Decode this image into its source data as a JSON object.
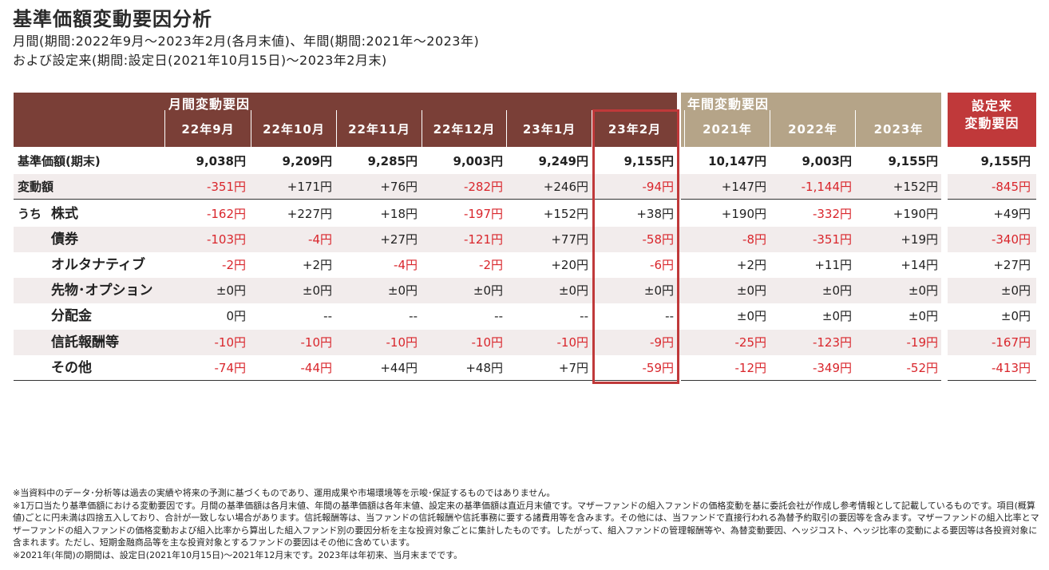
{
  "title": "基準価額変動要因分析",
  "subtitle_line1": "月間(期間:2022年9月～2023年2月(各月末値)、年間(期間:2021年～2023年)",
  "subtitle_line2": "および設定来(期間:設定日(2021年10月15日)～2023年2月末)",
  "headers": {
    "monthly_group": "月間変動要因",
    "annual_group": "年間変動要因",
    "since_line1": "設定来",
    "since_line2": "変動要因",
    "monthly_cols": [
      "22年9月",
      "22年10月",
      "22年11月",
      "22年12月",
      "23年1月",
      "23年2月"
    ],
    "annual_cols": [
      "2021年",
      "2022年",
      "2023年"
    ]
  },
  "rows": [
    {
      "prefix": "",
      "label": "基準価額(期末)",
      "values": [
        "9,038円",
        "9,209円",
        "9,285円",
        "9,003円",
        "9,249円",
        "9,155円",
        "10,147円",
        "9,003円",
        "9,155円",
        "9,155円"
      ]
    },
    {
      "prefix": "",
      "label": "変動額",
      "values": [
        "-351円",
        "+171円",
        "+76円",
        "-282円",
        "+246円",
        "-94円",
        "+147円",
        "-1,144円",
        "+152円",
        "-845円"
      ]
    },
    {
      "prefix": "うち",
      "label": "株式",
      "values": [
        "-162円",
        "+227円",
        "+18円",
        "-197円",
        "+152円",
        "+38円",
        "+190円",
        "-332円",
        "+190円",
        "+49円"
      ]
    },
    {
      "prefix": "",
      "label": "債券",
      "values": [
        "-103円",
        "-4円",
        "+27円",
        "-121円",
        "+77円",
        "-58円",
        "-8円",
        "-351円",
        "+19円",
        "-340円"
      ]
    },
    {
      "prefix": "",
      "label": "オルタナティブ",
      "values": [
        "-2円",
        "+2円",
        "-4円",
        "-2円",
        "+20円",
        "-6円",
        "+2円",
        "+11円",
        "+14円",
        "+27円"
      ]
    },
    {
      "prefix": "",
      "label": "先物･オプション",
      "values": [
        "±0円",
        "±0円",
        "±0円",
        "±0円",
        "±0円",
        "±0円",
        "±0円",
        "±0円",
        "±0円",
        "±0円"
      ]
    },
    {
      "prefix": "",
      "label": "分配金",
      "values": [
        "0円",
        "--",
        "--",
        "--",
        "--",
        "--",
        "±0円",
        "±0円",
        "±0円",
        "±0円"
      ]
    },
    {
      "prefix": "",
      "label": "信託報酬等",
      "values": [
        "-10円",
        "-10円",
        "-10円",
        "-10円",
        "-10円",
        "-9円",
        "-25円",
        "-123円",
        "-19円",
        "-167円"
      ]
    },
    {
      "prefix": "",
      "label": "その他",
      "values": [
        "-74円",
        "-44円",
        "+44円",
        "+48円",
        "+7円",
        "-59円",
        "-12円",
        "-349円",
        "-52円",
        "-413円"
      ]
    }
  ],
  "notes": [
    "※当資料中のデータ･分析等は過去の実績や将来の予測に基づくものであり、運用成果や市場環境等を示唆･保証するものではありません。",
    "※1万口当たり基準価額における変動要因です。月間の基準価額は各月末値、年間の基準価額は各年末値、設定来の基準価額は直近月末値です。マザーファンドの組入ファンドの価格変動を基に委託会社が作成し参考情報として記載しているものです。項目(概算値)ごとに円未満は四捨五入しており、合計が一致しない場合があります。信託報酬等は、当ファンドの信託報酬や信託事務に要する諸費用等を含みます。その他には、当ファンドで直接行われる為替予約取引の要因等を含みます。マザーファンドの組入比率とマザーファンドの組入ファンドの価格変動および組入比率から算出した組入ファンド別の要因分析を主な投資対象ごとに集計したものです。したがって、組入ファンドの管理報酬等や、為替変動要因、ヘッジコスト、ヘッジ比率の変動による要因等は各投資対象に含まれます。ただし、短期金融商品等を主な投資対象とするファンドの要因はその他に含めています。",
    "※2021年(年間)の期間は、設定日(2021年10月15日)～2021年12月末です。2023年は年初来、当月末までです。"
  ],
  "colors": {
    "monthly_header": "#7a3f37",
    "annual_header": "#b5a488",
    "since_header": "#c0393a",
    "negative": "#d9262c",
    "highlight_border": "#c0393a"
  }
}
